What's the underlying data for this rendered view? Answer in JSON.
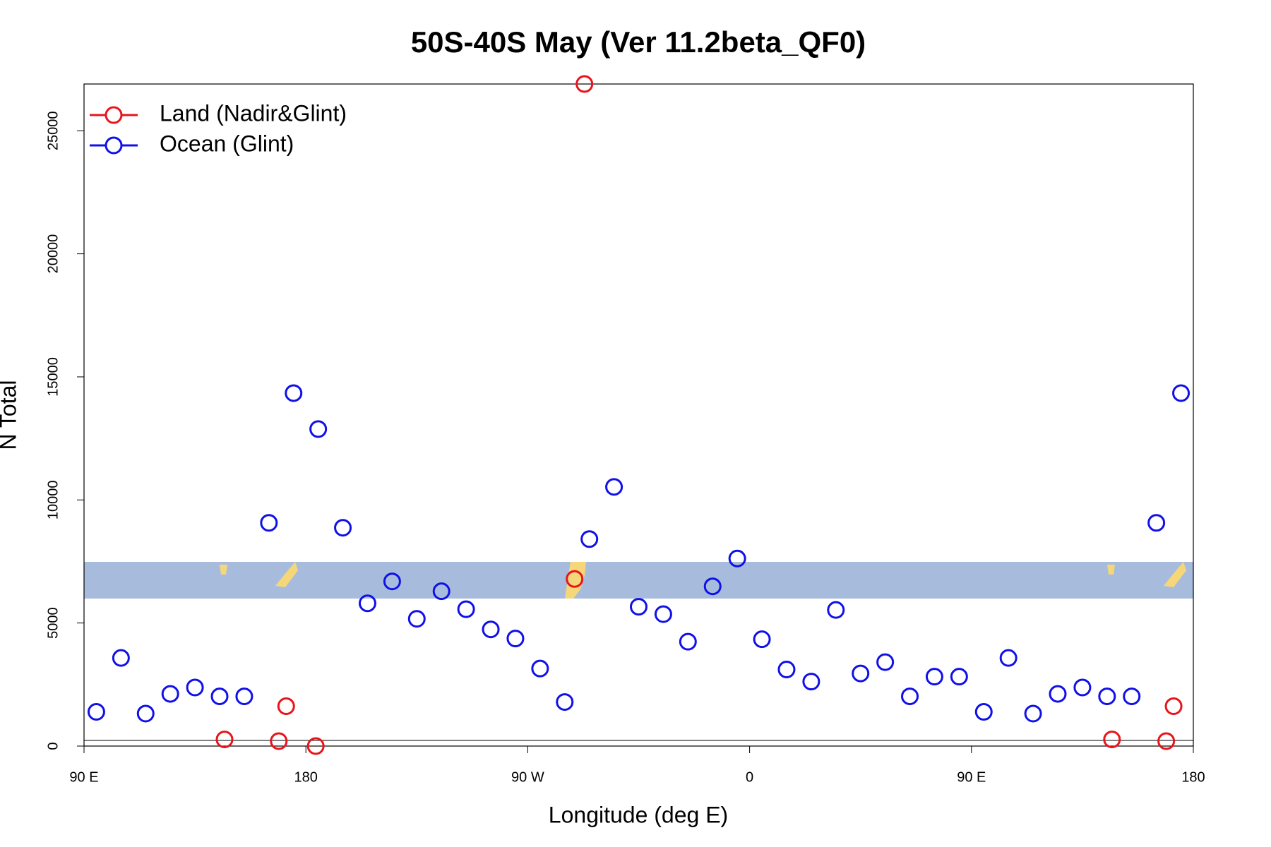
{
  "chart_data": {
    "type": "scatter",
    "title": "50S-40S May (Ver 11.2beta_QF0)",
    "x_label": "Longitude (deg E)",
    "y_label": "N Total",
    "xlim": [
      90,
      540
    ],
    "xticks": [
      {
        "value": 90,
        "label": "90 E"
      },
      {
        "value": 180,
        "label": "180"
      },
      {
        "value": 270,
        "label": "90 W"
      },
      {
        "value": 360,
        "label": "0"
      },
      {
        "value": 450,
        "label": "90 E"
      },
      {
        "value": 540,
        "label": "180"
      }
    ],
    "ylim": [
      0,
      26900
    ],
    "yticks": [
      0,
      5000,
      10000,
      15000,
      20000,
      25000
    ],
    "legend_position": "top-left",
    "series": [
      {
        "name": "Land (Nadir&Glint)",
        "color": "#e8141c",
        "x": [
          147,
          169,
          172,
          184,
          289,
          293,
          507,
          529,
          532
        ],
        "values": [
          270,
          200,
          1620,
          0,
          6790,
          26900,
          270,
          200,
          1620
        ]
      },
      {
        "name": "Ocean (Glint)",
        "color": "#1010e8",
        "x": [
          95,
          105,
          115,
          125,
          135,
          145,
          155,
          165,
          175,
          185,
          195,
          205,
          215,
          225,
          235,
          245,
          255,
          265,
          275,
          285,
          295,
          305,
          315,
          325,
          335,
          345,
          355,
          365,
          375,
          385,
          395,
          405,
          415,
          425,
          435,
          445,
          455,
          465,
          475,
          485,
          495,
          505,
          515,
          525,
          535
        ],
        "values": [
          1390,
          3580,
          1320,
          2120,
          2380,
          2020,
          2020,
          9070,
          14340,
          12880,
          8870,
          5800,
          6690,
          5170,
          6290,
          5560,
          4740,
          4370,
          3150,
          1790,
          8410,
          10530,
          5660,
          5360,
          4240,
          6490,
          7620,
          4340,
          3110,
          2620,
          5530,
          2950,
          3410,
          2020,
          2820,
          2820,
          1390,
          3580,
          1320,
          2120,
          2380,
          2020,
          2020,
          9070,
          14340
        ]
      }
    ]
  }
}
